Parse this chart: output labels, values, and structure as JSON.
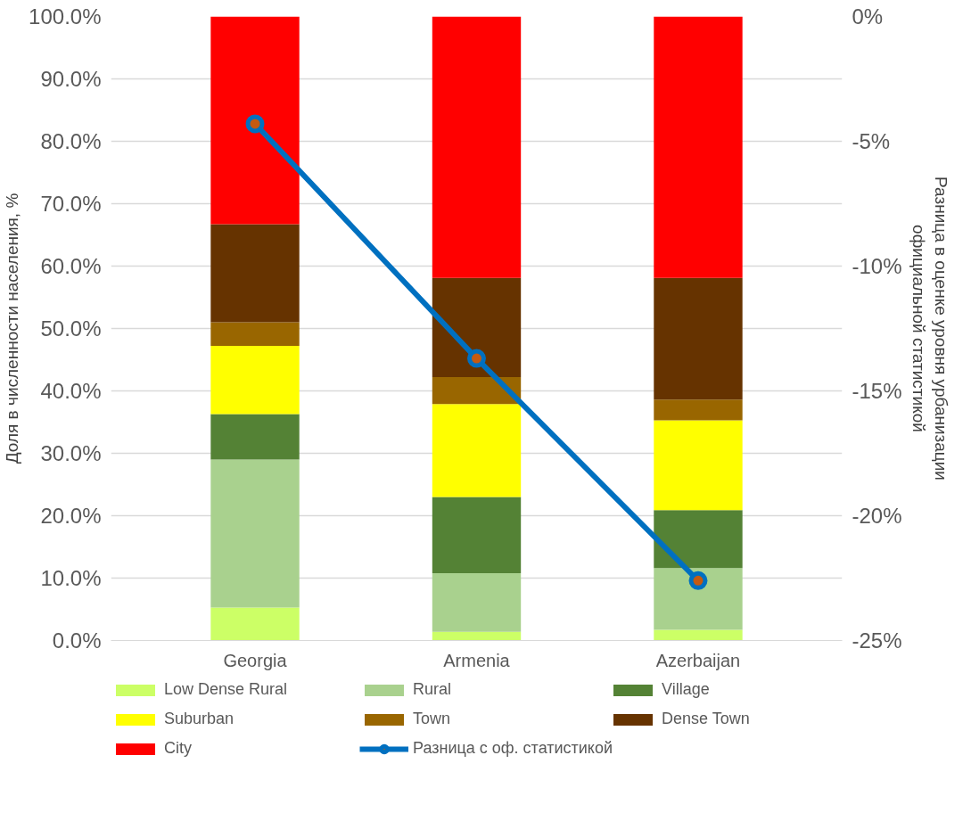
{
  "chart_data": {
    "type": "bar",
    "stacked": true,
    "categories": [
      "Georgia",
      "Armenia",
      "Azerbaijan"
    ],
    "ylabel": "Доля в численности населения, %",
    "y2label": "Разница в оценке уровня урбанизации официальной статистикой",
    "ylim": [
      0,
      100
    ],
    "yticks": [
      {
        "value": 0,
        "label": "0.0%"
      },
      {
        "value": 10,
        "label": "10.0%"
      },
      {
        "value": 20,
        "label": "20.0%"
      },
      {
        "value": 30,
        "label": "30.0%"
      },
      {
        "value": 40,
        "label": "40.0%"
      },
      {
        "value": 50,
        "label": "50.0%"
      },
      {
        "value": 60,
        "label": "60.0%"
      },
      {
        "value": 70,
        "label": "70.0%"
      },
      {
        "value": 80,
        "label": "80.0%"
      },
      {
        "value": 90,
        "label": "90.0%"
      },
      {
        "value": 100,
        "label": "100.0%"
      }
    ],
    "y2lim": [
      -25,
      0
    ],
    "y2ticks": [
      {
        "value": -25,
        "label": "-25%"
      },
      {
        "value": -20,
        "label": "-20%"
      },
      {
        "value": -15,
        "label": "-15%"
      },
      {
        "value": -10,
        "label": "-10%"
      },
      {
        "value": -5,
        "label": "-5%"
      },
      {
        "value": 0,
        "label": "0%"
      }
    ],
    "grid": "y",
    "legend": "bottom",
    "series": [
      {
        "name": "Low Dense Rural",
        "color": "#ccff66",
        "values": [
          5.3,
          1.4,
          1.7
        ]
      },
      {
        "name": "Rural",
        "color": "#a9d18e",
        "values": [
          23.7,
          9.4,
          9.9
        ]
      },
      {
        "name": "Village",
        "color": "#548235",
        "values": [
          7.3,
          12.2,
          9.3
        ]
      },
      {
        "name": "Suburban",
        "color": "#ffff00",
        "values": [
          10.9,
          14.9,
          14.4
        ]
      },
      {
        "name": "Town",
        "color": "#996600",
        "values": [
          3.8,
          4.3,
          3.3
        ]
      },
      {
        "name": "Dense Town",
        "color": "#663300",
        "values": [
          15.7,
          15.9,
          19.5
        ]
      },
      {
        "name": "City",
        "color": "#ff0000",
        "values": [
          33.3,
          41.9,
          41.9
        ]
      },
      {
        "name": "Разница с оф. статистикой",
        "type": "line",
        "axis": "y2",
        "marker": "circle",
        "color": "#0070c0",
        "values": [
          -4.3,
          -13.7,
          -22.6
        ]
      }
    ]
  }
}
